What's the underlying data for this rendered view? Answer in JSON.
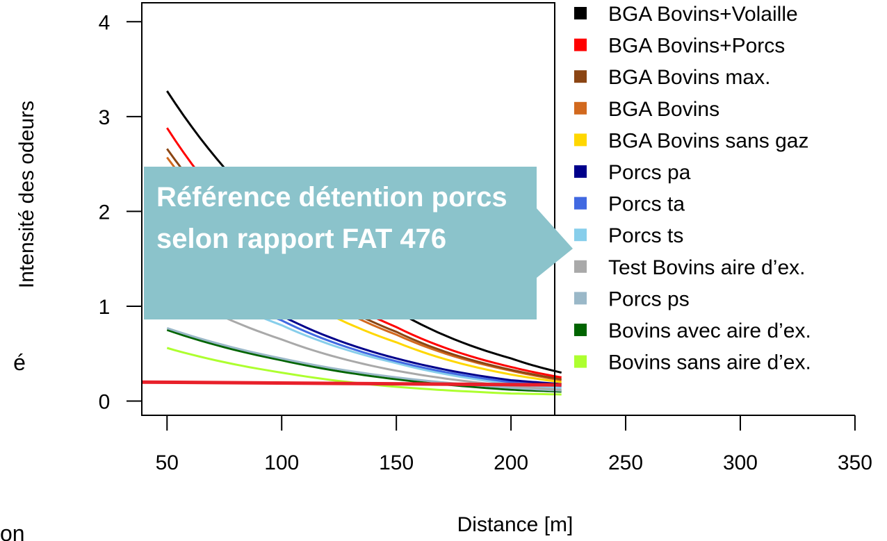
{
  "page_fragments": {
    "left_char": "é",
    "bottom_left_text": "on"
  },
  "annotation": {
    "text": "Référence détention porcs selon rapport FAT 476",
    "color": "#8bc3cb"
  },
  "chart_data": {
    "type": "line",
    "title": "",
    "xlabel": "Distance [m]",
    "ylabel": "Intensité des odeurs",
    "xlim": [
      39,
      357
    ],
    "ylim": [
      -0.15,
      4.2
    ],
    "xticks": [
      50,
      100,
      150,
      200,
      250,
      300,
      350
    ],
    "yticks": [
      0,
      1,
      2,
      3,
      4
    ],
    "legend_position": "right",
    "reference_line": {
      "x": [
        39,
        222
      ],
      "y": [
        0.2,
        0.17
      ],
      "color": "#e8202a"
    },
    "series": [
      {
        "name": "BGA Bovins+Volaille",
        "color": "#000000",
        "x": [
          50,
          100,
          150,
          200,
          222
        ],
        "y": [
          3.27,
          1.85,
          0.95,
          0.45,
          0.3
        ]
      },
      {
        "name": "BGA Bovins+Porcs",
        "color": "#ff0000",
        "x": [
          50,
          100,
          150,
          200,
          222
        ],
        "y": [
          2.88,
          1.5,
          0.78,
          0.36,
          0.25
        ]
      },
      {
        "name": "BGA Bovins max.",
        "color": "#8b4513",
        "x": [
          50,
          100,
          150,
          200,
          222
        ],
        "y": [
          2.66,
          1.4,
          0.73,
          0.33,
          0.23
        ]
      },
      {
        "name": "BGA Bovins",
        "color": "#d2691e",
        "x": [
          50,
          100,
          150,
          200,
          222
        ],
        "y": [
          2.57,
          1.35,
          0.7,
          0.32,
          0.22
        ]
      },
      {
        "name": "BGA Bovins sans gaz",
        "color": "#ffd700",
        "x": [
          50,
          100,
          150,
          200,
          222
        ],
        "y": [
          2.3,
          1.2,
          0.62,
          0.28,
          0.2
        ]
      },
      {
        "name": "Porcs pa",
        "color": "#00008b",
        "x": [
          50,
          100,
          150,
          200,
          222
        ],
        "y": [
          1.6,
          0.9,
          0.45,
          0.22,
          0.18
        ]
      },
      {
        "name": "Porcs ta",
        "color": "#4169e1",
        "x": [
          50,
          100,
          150,
          200,
          222
        ],
        "y": [
          1.5,
          0.85,
          0.42,
          0.2,
          0.16
        ]
      },
      {
        "name": "Porcs ts",
        "color": "#87ceeb",
        "x": [
          50,
          100,
          150,
          200,
          222
        ],
        "y": [
          1.4,
          0.8,
          0.4,
          0.18,
          0.14
        ]
      },
      {
        "name": "Test Bovins aire d’ex.",
        "color": "#a9a9a9",
        "x": [
          50,
          100,
          150,
          200,
          222
        ],
        "y": [
          1.2,
          0.65,
          0.32,
          0.16,
          0.12
        ]
      },
      {
        "name": "Porcs ps",
        "color": "#9ab8c8",
        "x": [
          50,
          100,
          150,
          200,
          222
        ],
        "y": [
          0.77,
          0.45,
          0.25,
          0.14,
          0.11
        ]
      },
      {
        "name": "Bovins avec aire d’ex.",
        "color": "#006400",
        "x": [
          50,
          100,
          150,
          200,
          222
        ],
        "y": [
          0.75,
          0.43,
          0.23,
          0.12,
          0.1
        ]
      },
      {
        "name": "Bovins sans aire d’ex.",
        "color": "#adff2f",
        "x": [
          50,
          100,
          150,
          200,
          222
        ],
        "y": [
          0.56,
          0.3,
          0.15,
          0.08,
          0.07
        ]
      }
    ]
  }
}
